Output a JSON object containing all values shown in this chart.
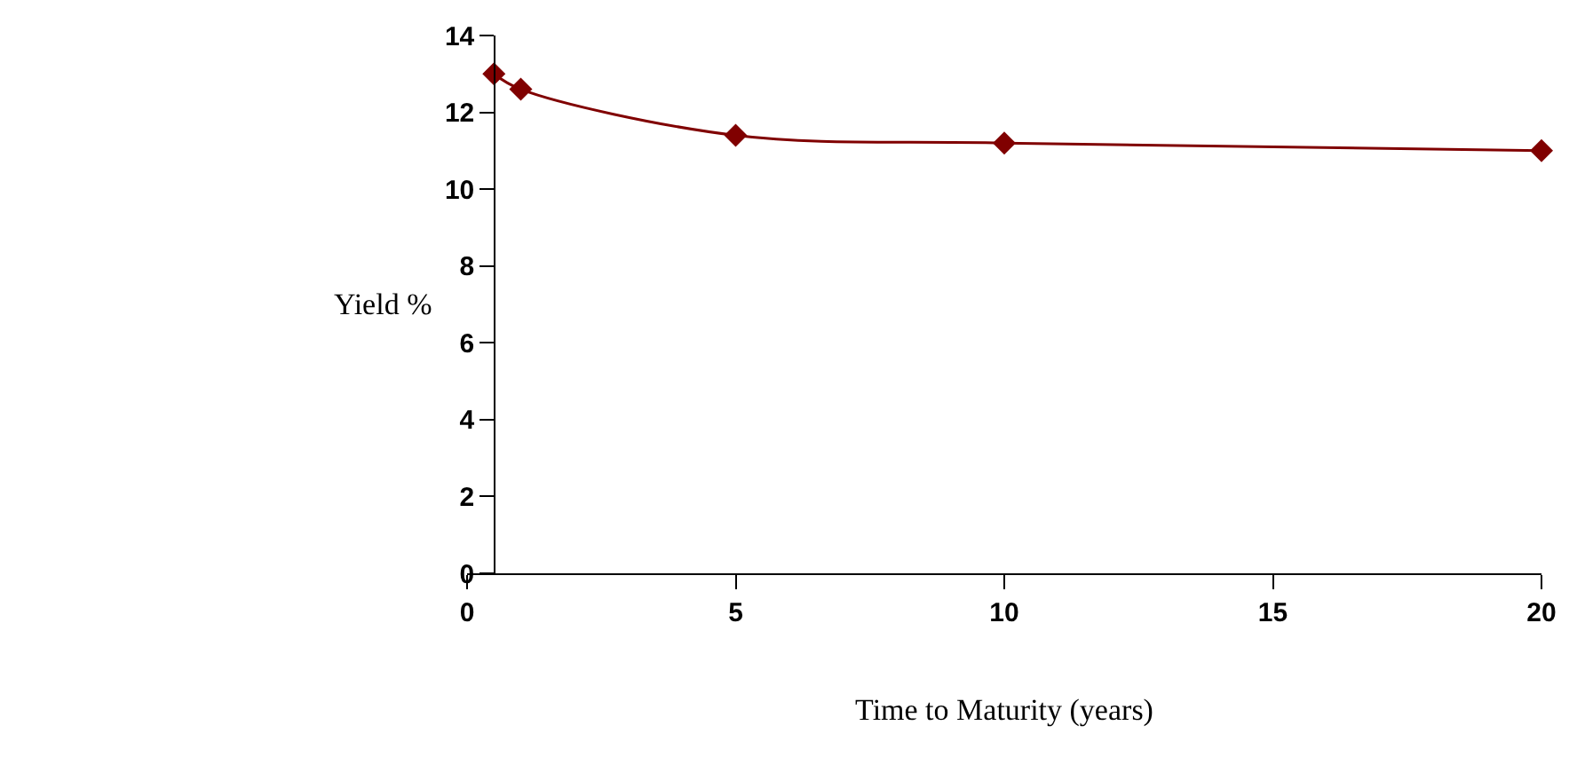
{
  "chart_data": {
    "type": "line",
    "xlabel": "Time to Maturity (years)",
    "ylabel": "Yield %",
    "x": [
      0.5,
      1,
      5,
      10,
      20
    ],
    "series": [
      {
        "color": "#800000",
        "values": [
          13.0,
          12.6,
          11.4,
          11.2,
          11.0
        ]
      }
    ],
    "xlim": [
      0,
      20
    ],
    "xticks": [
      0,
      5,
      10,
      15,
      20
    ],
    "ylim": [
      0,
      14
    ],
    "yticks": [
      0,
      2,
      4,
      6,
      8,
      10,
      12,
      14
    ],
    "marker": "diamond",
    "line_style": "solid"
  }
}
